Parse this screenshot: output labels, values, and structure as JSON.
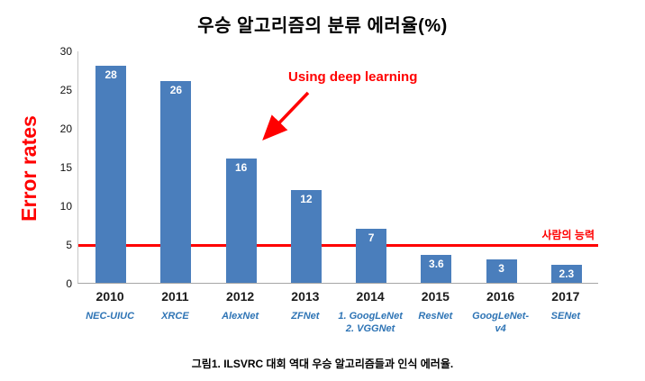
{
  "title": "우승 알고리즘의 분류 에러율(%)",
  "caption": "그림1. ILSVRC 대회 역대 우승 알고리즘들과 인식 에러율.",
  "colors": {
    "bar": "#4a7ebc",
    "bar_value_text": "#ffffff",
    "accent_red": "#ff0000",
    "label_blue": "#2e74b5"
  },
  "chart_data": {
    "type": "bar",
    "title": "우승 알고리즘의 분류 에러율(%)",
    "xlabel": "",
    "ylabel": "Error rates",
    "categories": [
      "2010",
      "2011",
      "2012",
      "2013",
      "2014",
      "2015",
      "2016",
      "2017"
    ],
    "category_sublabels": [
      "NEC-UIUC",
      "XRCE",
      "AlexNet",
      "ZFNet",
      "1. GoogLeNet\n2. VGGNet",
      "ResNet",
      "GoogLeNet-v4",
      "SENet"
    ],
    "values": [
      28,
      26,
      16,
      12,
      7,
      3.6,
      3,
      2.3
    ],
    "ylim": [
      0,
      30
    ],
    "yticks": [
      0,
      5,
      10,
      15,
      20,
      25,
      30
    ],
    "grid": false,
    "legend": false,
    "reference_line": {
      "y": 5,
      "label": "사람의 능력",
      "color": "#ff0000"
    },
    "annotation": {
      "text": "Using deep learning",
      "target_category": "2012"
    }
  }
}
